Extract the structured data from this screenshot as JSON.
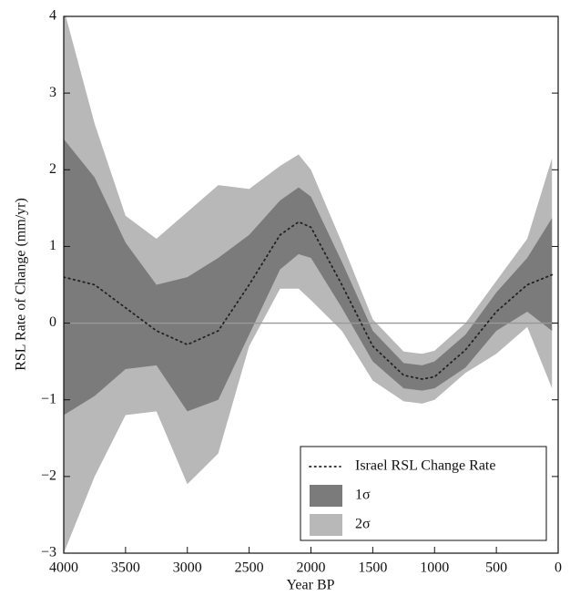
{
  "chart_data": {
    "type": "band",
    "x_label": "Year BP",
    "y_label": "RSL Rate of Change (mm/yr)",
    "x": [
      4000,
      3750,
      3500,
      3250,
      3000,
      2750,
      2500,
      2250,
      2100,
      2000,
      1750,
      1500,
      1250,
      1100,
      1000,
      750,
      500,
      250,
      50
    ],
    "series": [
      {
        "name": "Israel RSL Change Rate",
        "color": "#222222",
        "style": "dotted",
        "values": [
          0.6,
          0.5,
          0.2,
          -0.1,
          -0.28,
          -0.1,
          0.5,
          1.15,
          1.32,
          1.25,
          0.5,
          -0.3,
          -0.68,
          -0.73,
          -0.7,
          -0.35,
          0.15,
          0.5,
          0.63
        ]
      },
      {
        "name": "1σ",
        "color": "#7b7b7b",
        "upper": [
          2.4,
          1.9,
          1.05,
          0.5,
          0.6,
          0.85,
          1.15,
          1.6,
          1.77,
          1.65,
          0.8,
          -0.1,
          -0.52,
          -0.55,
          -0.5,
          -0.15,
          0.4,
          0.85,
          1.37
        ],
        "lower": [
          -1.2,
          -0.95,
          -0.6,
          -0.55,
          -1.15,
          -1.0,
          -0.15,
          0.7,
          0.9,
          0.85,
          0.2,
          -0.5,
          -0.85,
          -0.88,
          -0.85,
          -0.58,
          -0.1,
          0.15,
          -0.1
        ]
      },
      {
        "name": "2σ",
        "color": "#b8b8b8",
        "upper": [
          4.1,
          2.6,
          1.4,
          1.1,
          1.45,
          1.8,
          1.75,
          2.05,
          2.2,
          2.0,
          1.05,
          0.05,
          -0.37,
          -0.4,
          -0.36,
          0.0,
          0.55,
          1.1,
          2.15
        ],
        "lower": [
          -3.0,
          -2.0,
          -1.2,
          -1.15,
          -2.1,
          -1.7,
          -0.3,
          0.45,
          0.45,
          0.3,
          -0.1,
          -0.75,
          -1.02,
          -1.05,
          -1.0,
          -0.65,
          -0.4,
          -0.05,
          -0.85
        ]
      }
    ],
    "xlim": [
      4000,
      0
    ],
    "xticks": [
      4000,
      3500,
      3000,
      2500,
      2000,
      1500,
      1000,
      500,
      0
    ],
    "ylim": [
      -3,
      4
    ],
    "yticks": [
      {
        "value": -3,
        "label": "−3"
      },
      {
        "value": -2,
        "label": "−2"
      },
      {
        "value": -1,
        "label": "−1"
      },
      0,
      1,
      2,
      3,
      4
    ],
    "reference_line": 0,
    "reference_color": "#999999",
    "legend": "lower right"
  }
}
